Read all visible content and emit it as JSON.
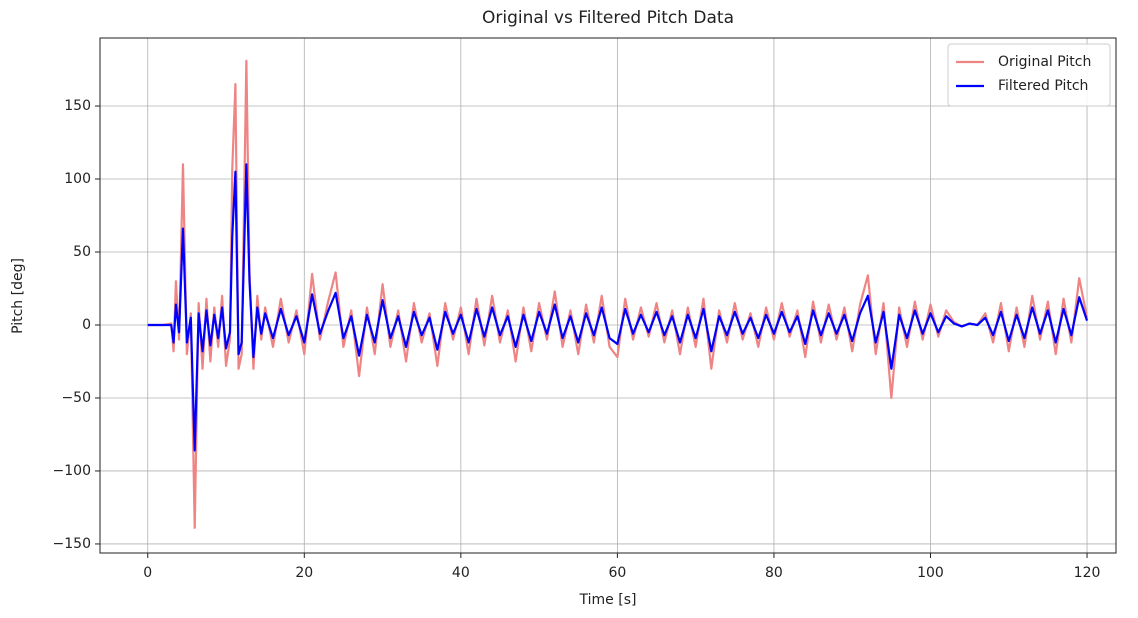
{
  "chart_data": {
    "type": "line",
    "title": "Original vs Filtered Pitch Data",
    "xlabel": "Time [s]",
    "ylabel": "Pitch [deg]",
    "x": [
      0,
      1,
      2,
      3,
      3.3,
      3.6,
      4,
      4.5,
      5,
      5.5,
      6,
      6.5,
      7,
      7.5,
      8,
      8.5,
      9,
      9.5,
      10,
      10.5,
      10.8,
      11.2,
      11.6,
      12,
      12.6,
      13,
      13.5,
      14,
      14.5,
      15,
      16,
      17,
      18,
      19,
      20,
      21,
      22,
      23,
      24,
      25,
      26,
      27,
      28,
      29,
      30,
      31,
      32,
      33,
      34,
      35,
      36,
      37,
      38,
      39,
      40,
      41,
      42,
      43,
      44,
      45,
      46,
      47,
      48,
      49,
      50,
      51,
      52,
      53,
      54,
      55,
      56,
      57,
      58,
      59,
      60,
      61,
      62,
      63,
      64,
      65,
      66,
      67,
      68,
      69,
      70,
      71,
      72,
      73,
      74,
      75,
      76,
      77,
      78,
      79,
      80,
      81,
      82,
      83,
      84,
      85,
      86,
      87,
      88,
      89,
      90,
      91,
      92,
      93,
      94,
      95,
      96,
      97,
      98,
      99,
      100,
      101,
      102,
      103,
      104,
      105,
      106,
      107,
      108,
      109,
      110,
      111,
      112,
      113,
      114,
      115,
      116,
      117,
      118,
      119,
      120
    ],
    "series": [
      {
        "name": "Original Pitch",
        "color": "#ee8584",
        "values": [
          0,
          0,
          0,
          1,
          -18,
          30,
          -10,
          110,
          -20,
          8,
          -139,
          15,
          -30,
          18,
          -25,
          12,
          -15,
          20,
          -28,
          -10,
          107,
          165,
          -30,
          -20,
          181,
          36,
          -30,
          20,
          -10,
          12,
          -15,
          18,
          -12,
          10,
          -20,
          35,
          -10,
          15,
          36,
          -15,
          10,
          -35,
          12,
          -20,
          28,
          -15,
          10,
          -25,
          15,
          -12,
          8,
          -28,
          15,
          -10,
          12,
          -20,
          18,
          -14,
          20,
          -12,
          10,
          -25,
          12,
          -18,
          15,
          -10,
          23,
          -15,
          10,
          -20,
          14,
          -12,
          20,
          -15,
          -22,
          18,
          -10,
          12,
          -8,
          15,
          -12,
          10,
          -20,
          12,
          -15,
          18,
          -30,
          10,
          -12,
          15,
          -10,
          8,
          -15,
          12,
          -10,
          15,
          -8,
          10,
          -22,
          16,
          -12,
          14,
          -10,
          12,
          -18,
          14,
          34,
          -20,
          15,
          -50,
          12,
          -15,
          16,
          -10,
          14,
          -8,
          10,
          2,
          -1,
          1,
          0,
          8,
          -12,
          15,
          -18,
          12,
          -15,
          20,
          -10,
          16,
          -20,
          18,
          -12,
          32,
          5
        ]
      },
      {
        "name": "Filtered Pitch",
        "color": "#0000ff",
        "values": [
          0,
          0,
          0,
          0,
          -12,
          14,
          -5,
          66,
          -12,
          5,
          -86,
          8,
          -18,
          10,
          -14,
          7,
          -9,
          12,
          -16,
          -5,
          61,
          105,
          -20,
          -12,
          110,
          30,
          -22,
          12,
          -6,
          8,
          -9,
          11,
          -7,
          6,
          -12,
          21,
          -6,
          9,
          22,
          -9,
          6,
          -21,
          7,
          -12,
          17,
          -9,
          6,
          -15,
          9,
          -7,
          5,
          -17,
          9,
          -6,
          7,
          -12,
          11,
          -8,
          12,
          -7,
          6,
          -15,
          7,
          -11,
          9,
          -6,
          14,
          -9,
          6,
          -12,
          8,
          -7,
          12,
          -9,
          -13,
          11,
          -6,
          7,
          -5,
          9,
          -7,
          6,
          -12,
          7,
          -9,
          11,
          -18,
          6,
          -7,
          9,
          -6,
          5,
          -9,
          7,
          -6,
          9,
          -5,
          6,
          -13,
          10,
          -7,
          8,
          -6,
          7,
          -11,
          8,
          20,
          -12,
          9,
          -30,
          7,
          -9,
          10,
          -6,
          8,
          -5,
          6,
          1,
          -1,
          1,
          0,
          5,
          -7,
          9,
          -11,
          7,
          -9,
          12,
          -6,
          10,
          -12,
          11,
          -7,
          19,
          3
        ]
      }
    ],
    "xlim": [
      -6.1,
      123.7
    ],
    "ylim": [
      -156.2,
      196.6
    ],
    "xticks": [
      0,
      20,
      40,
      60,
      80,
      100,
      120
    ],
    "yticks": [
      {
        "value": -150,
        "label": "−150"
      },
      {
        "value": -100,
        "label": "−100"
      },
      {
        "value": -50,
        "label": "−50"
      },
      0,
      50,
      100,
      150
    ],
    "grid": true,
    "legend": "upper right"
  }
}
